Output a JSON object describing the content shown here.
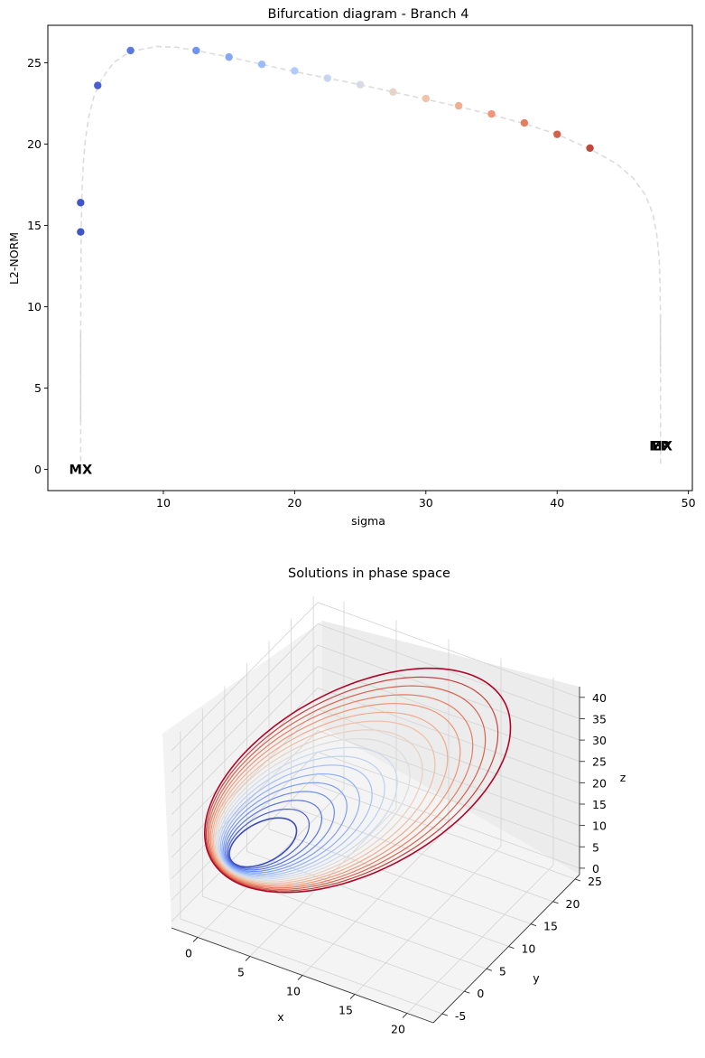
{
  "chart_data": [
    {
      "type": "line",
      "title": "Bifurcation diagram - Branch 4",
      "xlabel": "sigma",
      "ylabel": "L2-NORM",
      "xlim": [
        1.2,
        50.3
      ],
      "ylim": [
        -1.3,
        27.3
      ],
      "xticks": [
        10,
        20,
        30,
        40,
        50
      ],
      "yticks": [
        0,
        5,
        10,
        15,
        20,
        25
      ],
      "grid": false,
      "branch_curve": {
        "style": "dashed",
        "color": "#dcdcdc",
        "x": [
          3.7,
          3.7,
          3.72,
          3.75,
          3.8,
          3.9,
          4.05,
          4.3,
          4.7,
          5.3,
          6.2,
          7.5,
          9.5,
          11.0,
          12.5,
          15.0,
          17.5,
          20.0,
          22.5,
          25.0,
          27.5,
          30.0,
          32.5,
          35.0,
          37.5,
          40.0,
          42.5,
          44.5,
          45.8,
          46.7,
          47.3,
          47.6,
          47.78,
          47.85,
          47.87,
          47.87
        ],
        "y": [
          0.5,
          8.0,
          12.0,
          15.0,
          17.0,
          18.8,
          20.2,
          21.6,
          22.9,
          24.0,
          25.0,
          25.7,
          26.0,
          25.95,
          25.75,
          25.35,
          24.9,
          24.45,
          24.05,
          23.65,
          23.2,
          22.75,
          22.3,
          21.8,
          21.25,
          20.6,
          19.7,
          18.8,
          17.9,
          16.9,
          15.7,
          14.4,
          12.8,
          11.0,
          9.0,
          0.3
        ]
      },
      "stable_segments": [
        {
          "x": [
            3.7,
            3.7
          ],
          "y": [
            3.0,
            8.5
          ]
        },
        {
          "x": [
            47.87,
            47.87
          ],
          "y": [
            6.3,
            9.5
          ]
        }
      ],
      "points": {
        "x": [
          3.7,
          3.7,
          5.0,
          7.5,
          12.5,
          15.0,
          17.5,
          20.0,
          22.5,
          25.0,
          27.5,
          30.0,
          32.5,
          35.0,
          37.5,
          40.0,
          42.5
        ],
        "y": [
          14.6,
          16.4,
          23.6,
          25.75,
          25.75,
          25.35,
          24.9,
          24.5,
          24.05,
          23.65,
          23.2,
          22.8,
          22.35,
          21.85,
          21.3,
          20.6,
          19.75
        ],
        "colors": [
          "#4055c8",
          "#4055c8",
          "#4a60d0",
          "#5a78e0",
          "#7093ef",
          "#86a8f6",
          "#9bbcfa",
          "#b2cbf9",
          "#c6d5f0",
          "#d8dbe3",
          "#e6d4c8",
          "#efc3ac",
          "#f2ae92",
          "#ee9677",
          "#e37d60",
          "#d4614c",
          "#c2483d"
        ]
      },
      "annotations": [
        {
          "text": "MX",
          "x": 3.7,
          "y": 0.0
        },
        {
          "text": "EP",
          "x": 47.9,
          "y": 1.45
        },
        {
          "text": "MX",
          "x": 47.9,
          "y": 1.45
        }
      ]
    },
    {
      "type": "line3d",
      "title": "Solutions in phase space",
      "xlabel": "x",
      "ylabel": "y",
      "zlabel": "z",
      "xticks": [
        0,
        5,
        10,
        15,
        20
      ],
      "yticks": [
        -5,
        0,
        5,
        10,
        15,
        20,
        25
      ],
      "zticks": [
        0,
        5,
        10,
        15,
        20,
        25,
        30,
        35,
        40
      ],
      "colormap": "coolwarm",
      "series_colors": [
        "#3b4cc0",
        "#4a63d3",
        "#5a78e0",
        "#6b8df0",
        "#7e9ff6",
        "#92b1f8",
        "#a6c0f7",
        "#bcd0f4",
        "#cdd9ec",
        "#dddcdc",
        "#e8d0c1",
        "#efbfa6",
        "#f2ac8e",
        "#ef9676",
        "#e57e61",
        "#d8644d",
        "#c6453e",
        "#b40426"
      ]
    }
  ]
}
